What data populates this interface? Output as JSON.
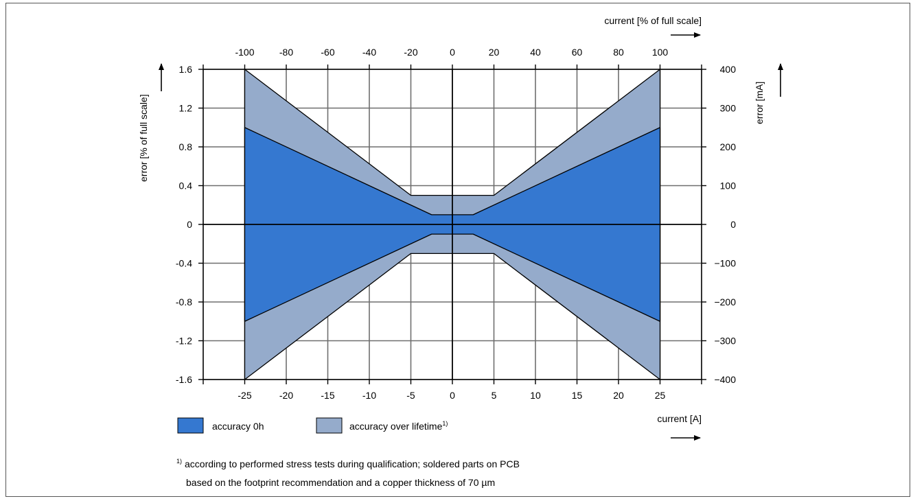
{
  "chart_data": {
    "type": "area",
    "x_bottom": {
      "label": "current [A]",
      "range": [
        -30,
        30
      ],
      "ticks": [
        -25,
        -20,
        -15,
        -10,
        -5,
        0,
        5,
        10,
        15,
        20,
        25
      ],
      "tick_labels": [
        "-25",
        "-20",
        "-15",
        "-10",
        "-5",
        "0",
        "5",
        "10",
        "15",
        "20",
        "25"
      ]
    },
    "x_top": {
      "label": "current [% of full scale]",
      "ticks": [
        -100,
        -80,
        -60,
        -40,
        -20,
        0,
        20,
        40,
        60,
        80,
        100
      ],
      "tick_labels": [
        "-100",
        "-80",
        "-60",
        "-40",
        "-20",
        "0",
        "20",
        "40",
        "60",
        "80",
        "100"
      ]
    },
    "y_left": {
      "label": "error [% of full scale]",
      "range": [
        -1.6,
        1.6
      ],
      "ticks": [
        1.6,
        1.2,
        0.8,
        0.4,
        0,
        -0.4,
        -0.8,
        -1.2,
        -1.6
      ],
      "tick_labels": [
        "1.6",
        "1.2",
        "0.8",
        "0.4",
        "0",
        "-0.4",
        "-0.8",
        "-1.2",
        "-1.6"
      ]
    },
    "y_right": {
      "label": "error [mA]",
      "range": [
        -400,
        400
      ],
      "ticks": [
        400,
        300,
        200,
        100,
        0,
        -100,
        -200,
        -300,
        -400
      ],
      "tick_labels": [
        "400",
        "300",
        "200",
        "100",
        "0",
        "−100",
        "−200",
        "−300",
        "−400"
      ]
    },
    "grid": true,
    "series": [
      {
        "name": "accuracy over lifetime",
        "superscript": "1)",
        "color": "#95abcb",
        "x": [
          -25,
          -5,
          0,
          5,
          25
        ],
        "upper": [
          1.6,
          0.3,
          0.3,
          0.3,
          1.6
        ],
        "lower": [
          -1.6,
          -0.3,
          -0.3,
          -0.3,
          -1.6
        ]
      },
      {
        "name": "accuracy 0h",
        "superscript": "",
        "color": "#3578d0",
        "x": [
          -25,
          -2.5,
          0,
          2.5,
          25
        ],
        "upper": [
          1.0,
          0.1,
          0.1,
          0.1,
          1.0
        ],
        "lower": [
          -1.0,
          -0.1,
          -0.1,
          -0.1,
          -1.0
        ]
      }
    ],
    "legend": [
      {
        "label": "accuracy 0h",
        "superscript": "",
        "color": "#3578d0"
      },
      {
        "label": "accuracy over lifetime",
        "superscript": "1)",
        "color": "#95abcb"
      }
    ],
    "footnote": {
      "marker": "1)",
      "line1": "according to performed stress tests during qualification; soldered parts on PCB",
      "line2": "based on the footprint recommendation and a copper thickness of 70 µm"
    }
  }
}
